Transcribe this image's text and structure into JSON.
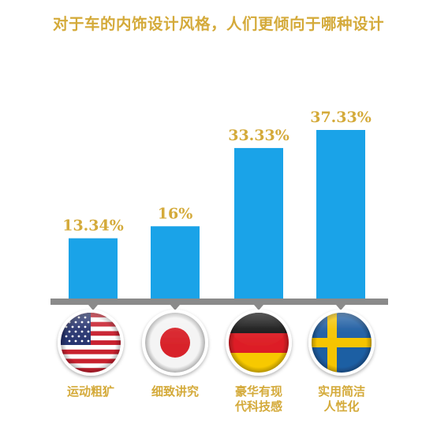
{
  "chart_data": {
    "type": "bar",
    "title": "对于车的内饰设计风格，人们更倾向于哪种设计",
    "categories": [
      "运动粗犷",
      "细致讲究",
      "豪华有现代科技感",
      "实用简洁人性化"
    ],
    "category_lines": [
      [
        "运动粗犷"
      ],
      [
        "细致讲究"
      ],
      [
        "豪华有现",
        "代科技感"
      ],
      [
        "实用简洁",
        "人性化"
      ]
    ],
    "values": [
      13.34,
      16,
      33.33,
      37.33
    ],
    "value_labels": [
      "13.34%",
      "16%",
      "33.33%",
      "37.33%"
    ],
    "flags": [
      "usa-flag",
      "japan-flag",
      "germany-flag",
      "sweden-flag"
    ],
    "ylim": [
      0,
      40
    ],
    "grid": false,
    "legend": "none",
    "colors": {
      "bar": "#1aa3e8",
      "text": "#d4aa3a",
      "axis": "#8a8a8a"
    }
  }
}
